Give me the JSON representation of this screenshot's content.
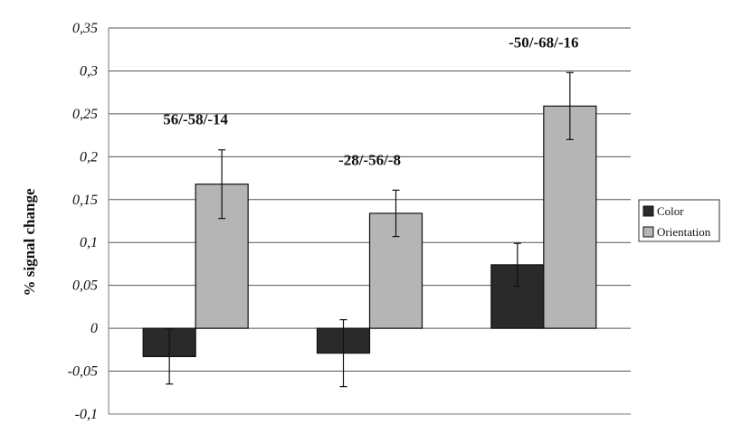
{
  "chart_data": {
    "type": "bar",
    "title": "",
    "xlabel": "",
    "ylabel": "% signal change",
    "ylim": [
      -0.1,
      0.35
    ],
    "yticks": [
      "-0,1",
      "-0,05",
      "0",
      "0,05",
      "0,1",
      "0,15",
      "0,2",
      "0,25",
      "0,3",
      "0,35"
    ],
    "ytick_values": [
      -0.1,
      -0.05,
      0,
      0.05,
      0.1,
      0.15,
      0.2,
      0.25,
      0.3,
      0.35
    ],
    "grid": true,
    "legend_position": "right",
    "groups": 3,
    "group_annotations": [
      "56/-58/-14",
      "-28/-56/-8",
      "-50/-68/-16"
    ],
    "series": [
      {
        "name": "Color",
        "color": "#2a2a2a",
        "values": [
          -0.033,
          -0.029,
          0.074
        ],
        "errors": [
          0.032,
          0.039,
          0.025
        ]
      },
      {
        "name": "Orientation",
        "color": "#b5b5b5",
        "values": [
          0.168,
          0.134,
          0.259
        ],
        "errors": [
          0.04,
          0.027,
          0.039
        ]
      }
    ]
  }
}
